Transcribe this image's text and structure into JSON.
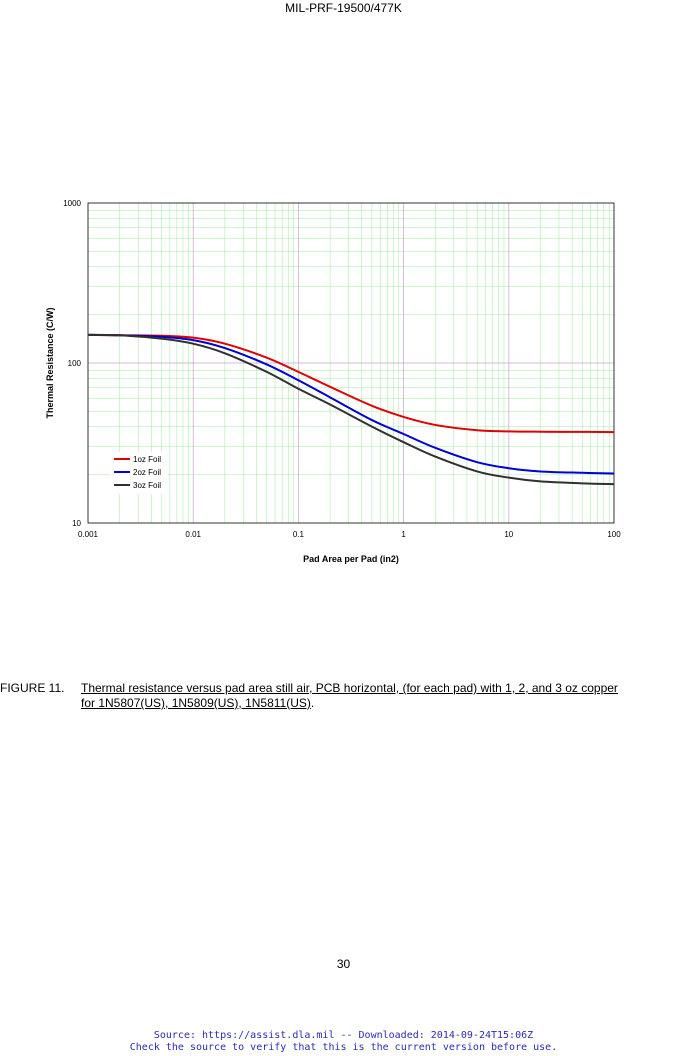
{
  "document": {
    "header": "MIL-PRF-19500/477K",
    "figure_number": "FIGURE 11.",
    "figure_caption_line1": "Thermal resistance versus pad area still air, PCB horizontal, (for each pad) with 1, 2, and 3 oz copper",
    "figure_caption_line2": "for 1N5807(US), 1N5809(US), 1N5811(US)",
    "page_number": "30",
    "footer_line1": "Source: https://assist.dla.mil -- Downloaded: 2014-09-24T15:06Z",
    "footer_line2": "Check the source to verify that this is the current version before use."
  },
  "chart_data": {
    "type": "line",
    "title": "",
    "xlabel": "Pad Area per Pad (in2)",
    "ylabel": "Thermal Resistance (C/W)",
    "x_scale": "log",
    "y_scale": "log",
    "xlim": [
      0.001,
      100
    ],
    "ylim": [
      10,
      1000
    ],
    "x_ticks": [
      "0.001",
      "0.01",
      "0.1",
      "1",
      "10",
      "100"
    ],
    "y_ticks": [
      "10",
      "100",
      "1000"
    ],
    "grid": true,
    "legend_position": "lower-left",
    "x": [
      0.001,
      0.002,
      0.005,
      0.01,
      0.02,
      0.05,
      0.1,
      0.2,
      0.5,
      1,
      2,
      5,
      10,
      20,
      50,
      100
    ],
    "series": [
      {
        "name": "1oz Foil",
        "color": "#e00000",
        "values": [
          150,
          149,
          148,
          144,
          132,
          108,
          88,
          71,
          54,
          46,
          41,
          38,
          37.4,
          37.2,
          37.1,
          37
        ]
      },
      {
        "name": "2oz Foil",
        "color": "#0000d0",
        "values": [
          150,
          149,
          146,
          139,
          124,
          98,
          78,
          61,
          44,
          36,
          29.5,
          24,
          22,
          21,
          20.6,
          20.4
        ]
      },
      {
        "name": "3oz Foil",
        "color": "#303030",
        "values": [
          150,
          149,
          142,
          132,
          115,
          88,
          69,
          55,
          40,
          32,
          26,
          21,
          19.2,
          18.2,
          17.7,
          17.5
        ]
      }
    ]
  }
}
